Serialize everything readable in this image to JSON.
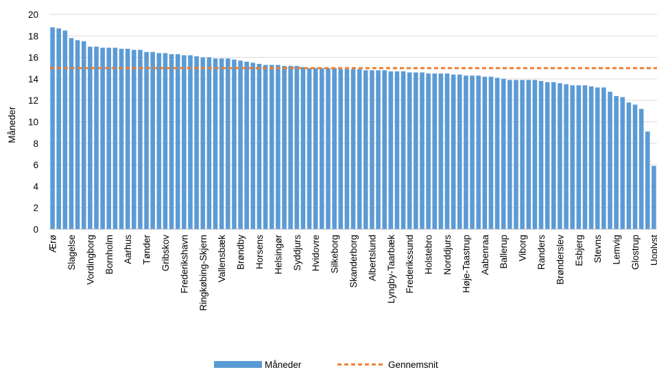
{
  "chart_data": {
    "type": "bar",
    "ylabel": "Måneder",
    "xlabel": "",
    "ylim": [
      0,
      20
    ],
    "yticks": [
      0,
      2,
      4,
      6,
      8,
      10,
      12,
      14,
      16,
      18,
      20
    ],
    "grid": true,
    "legend_position": "bottom",
    "bar_color": "#5b9bd5",
    "line_color": "#ed7d31",
    "series": [
      {
        "name": "Måneder",
        "type": "bar",
        "values": [
          18.8,
          18.7,
          18.5,
          17.8,
          17.6,
          17.5,
          17.0,
          17.0,
          16.9,
          16.9,
          16.9,
          16.8,
          16.8,
          16.7,
          16.7,
          16.5,
          16.5,
          16.4,
          16.4,
          16.3,
          16.3,
          16.2,
          16.2,
          16.1,
          16.0,
          16.0,
          15.9,
          15.9,
          15.9,
          15.8,
          15.7,
          15.6,
          15.5,
          15.4,
          15.3,
          15.3,
          15.3,
          15.2,
          15.2,
          15.2,
          15.1,
          15.0,
          15.0,
          15.0,
          15.0,
          15.0,
          14.9,
          14.9,
          14.9,
          14.9,
          14.8,
          14.8,
          14.8,
          14.8,
          14.7,
          14.7,
          14.7,
          14.6,
          14.6,
          14.6,
          14.5,
          14.5,
          14.5,
          14.5,
          14.4,
          14.4,
          14.3,
          14.3,
          14.3,
          14.2,
          14.2,
          14.1,
          14.0,
          13.9,
          13.9,
          13.9,
          13.9,
          13.9,
          13.8,
          13.7,
          13.7,
          13.6,
          13.5,
          13.4,
          13.4,
          13.4,
          13.3,
          13.2,
          13.2,
          12.8,
          12.4,
          12.3,
          11.8,
          11.6,
          11.2,
          9.1,
          5.9
        ]
      },
      {
        "name": "Gennemsnit",
        "type": "line",
        "values": [
          15.0
        ]
      }
    ],
    "x_tick_labels": [
      "Ærø",
      "Slagelse",
      "Vordingborg",
      "Bornholm",
      "Aarhus",
      "Tønder",
      "Gribskov",
      "Frederikshavn",
      "Ringkøbing-Skjern",
      "Vallensbæk",
      "Brøndby",
      "Horsens",
      "Helsingør",
      "Syddjurs",
      "Hvidovre",
      "Silkeborg",
      "Skanderborg",
      "Albertslund",
      "Lyngby-Taarbæk",
      "Frederikssund",
      "Holstebro",
      "Norddjurs",
      "Høje-Taastrup",
      "Aabenraa",
      "Ballerup",
      "Viborg",
      "Randers",
      "Brønderslev",
      "Esbjerg",
      "Stevns",
      "Lemvig",
      "Glostrup",
      "Uoplyst"
    ],
    "x_tick_every": 3
  }
}
